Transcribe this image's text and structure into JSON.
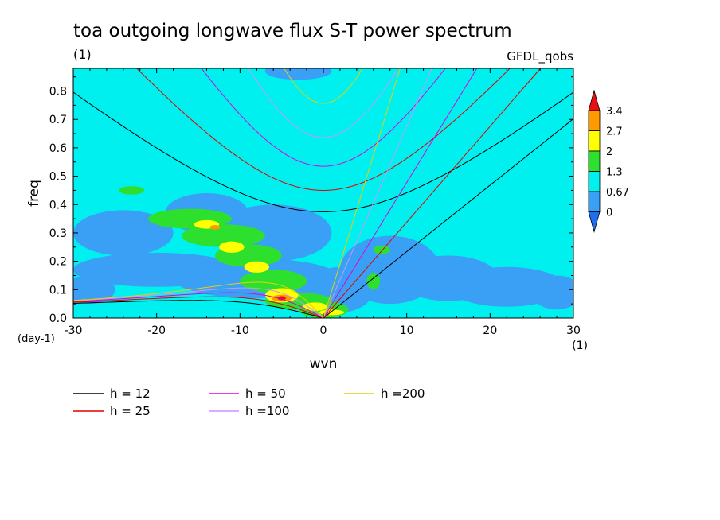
{
  "chart_data": {
    "type": "heatmap",
    "title": "toa outgoing longwave flux S-T power spectrum",
    "units_label": "(1)",
    "source_label": "GFDL_qobs",
    "xlabel": "wvn",
    "ylabel": "freq",
    "x_units": "(1)",
    "y_units": "(day-1)",
    "xlim": [
      -30,
      30
    ],
    "ylim": [
      0,
      0.88
    ],
    "x_ticks": [
      -30,
      -20,
      -10,
      0,
      10,
      20,
      30
    ],
    "x_tick_labels": [
      "-30",
      "-20",
      "-10",
      "0",
      "10",
      "20",
      "30"
    ],
    "y_ticks": [
      0.0,
      0.1,
      0.2,
      0.3,
      0.4,
      0.5,
      0.6,
      0.7,
      0.8
    ],
    "y_tick_labels": [
      "0.0",
      "0.1",
      "0.2",
      "0.3",
      "0.4",
      "0.5",
      "0.6",
      "0.7",
      "0.8"
    ],
    "colorbar": {
      "levels": [
        0,
        0.67,
        1.3,
        2,
        2.7,
        3.4
      ],
      "labels": [
        "0",
        "0.67",
        "1.3",
        "2",
        "2.7",
        "3.4"
      ],
      "colors": [
        "#1e6ff0",
        "#3aa0f5",
        "#00f0f0",
        "#2ee02e",
        "#ffff00",
        "#ff9900",
        "#e81010"
      ]
    },
    "field_background_level": "0.67-1.3",
    "dispersion_curves": [
      {
        "label": "h = 12",
        "equivalent_depth": 12,
        "color": "#000000"
      },
      {
        "label": "h = 25",
        "equivalent_depth": 25,
        "color": "#e00000"
      },
      {
        "label": "h = 50",
        "equivalent_depth": 50,
        "color": "#dd00dd"
      },
      {
        "label": "h =100",
        "equivalent_depth": 100,
        "color": "#c896ff"
      },
      {
        "label": "h =200",
        "equivalent_depth": 200,
        "color": "#e6d000"
      }
    ]
  }
}
